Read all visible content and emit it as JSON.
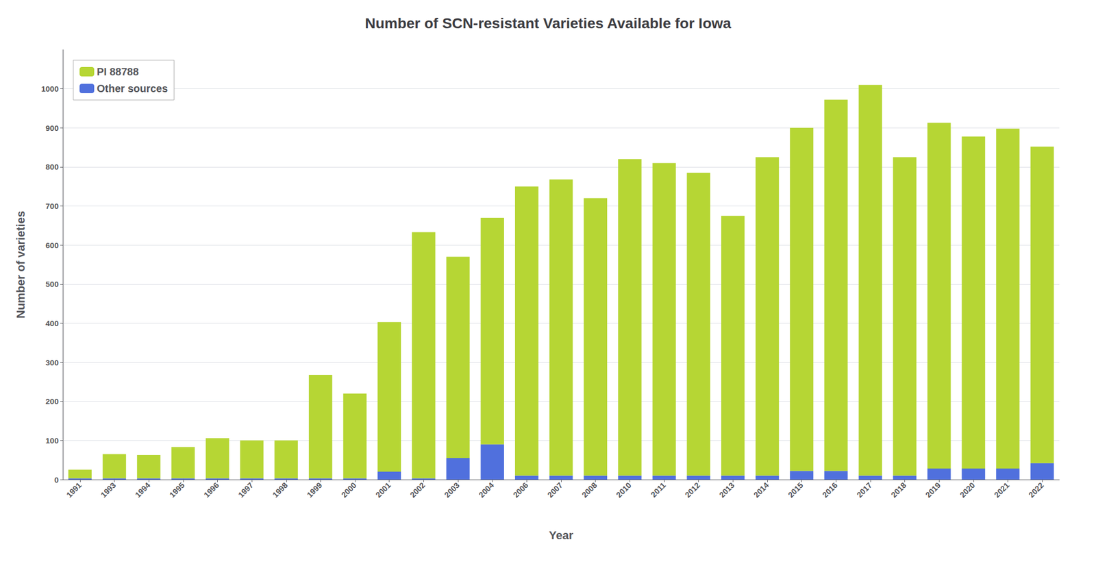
{
  "chart_data": {
    "type": "bar",
    "title": "Number of SCN-resistant Varieties Available for Iowa",
    "xlabel": "Year",
    "ylabel": "Number of varieties",
    "categories": [
      "1991",
      "1993",
      "1994",
      "1995",
      "1996",
      "1997",
      "1998",
      "1999",
      "2000",
      "2001",
      "2002",
      "2003",
      "2004",
      "2006",
      "2007",
      "2008",
      "2010",
      "2011",
      "2012",
      "2013",
      "2014",
      "2015",
      "2016",
      "2017",
      "2018",
      "2019",
      "2020",
      "2021",
      "2022"
    ],
    "series": [
      {
        "name": "Other sources",
        "values": [
          3,
          3,
          3,
          3,
          3,
          3,
          3,
          3,
          3,
          20,
          3,
          55,
          90,
          10,
          10,
          10,
          10,
          10,
          10,
          10,
          10,
          22,
          22,
          10,
          10,
          28,
          28,
          28,
          42
        ]
      },
      {
        "name": "PI 88788",
        "values": [
          22,
          62,
          60,
          80,
          103,
          97,
          97,
          265,
          217,
          383,
          630,
          515,
          580,
          740,
          758,
          710,
          810,
          800,
          775,
          665,
          815,
          878,
          950,
          1000,
          815,
          885,
          850,
          870,
          810
        ]
      }
    ],
    "stacked": true,
    "ylim": [
      0,
      1100
    ],
    "yticks": [
      0,
      100,
      200,
      300,
      400,
      500,
      600,
      700,
      800,
      900,
      1000
    ],
    "grid": true,
    "legend": "upper left"
  }
}
